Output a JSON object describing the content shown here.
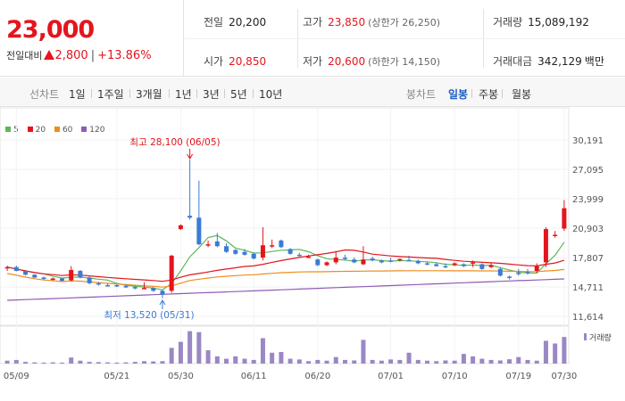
{
  "quote": {
    "price": "23,000",
    "change_label": "전일대비",
    "change": "2,800",
    "change_pct": "+13.86%"
  },
  "stats": {
    "prev_close_label": "전일",
    "prev_close": "20,200",
    "high_label": "고가",
    "high": "23,850",
    "upper_limit": "(상한가 26,250)",
    "volume_label": "거래량",
    "volume": "15,089,192",
    "open_label": "시가",
    "open": "20,850",
    "low_label": "저가",
    "low": "20,600",
    "lower_limit": "(하한가 14,150)",
    "value_label": "거래대금",
    "value": "342,129",
    "value_unit": "백만"
  },
  "tabs": {
    "line_label": "선차트",
    "line_items": [
      "1일",
      "1주일",
      "3개월",
      "1년",
      "3년",
      "5년",
      "10년"
    ],
    "candle_label": "봉차트",
    "candle_items": [
      "일봉",
      "주봉",
      "월봉"
    ],
    "candle_active": "일봉"
  },
  "colors": {
    "up": "#e4151d",
    "down": "#3a7bd5",
    "ma5": "#5cb85c",
    "ma20": "#e4151d",
    "ma60": "#f08c1e",
    "ma120": "#8e5bb5",
    "volume": "#9b87c4"
  },
  "chart_data": {
    "type": "candlestick",
    "legend": [
      "5",
      "20",
      "60",
      "120"
    ],
    "y_ticks": [
      "30,191",
      "27,095",
      "23,999",
      "20,903",
      "17,807",
      "14,711",
      "11,614"
    ],
    "ylim": [
      11614,
      30191
    ],
    "x_ticks": [
      "05/09",
      "05/21",
      "05/30",
      "06/11",
      "06/20",
      "07/01",
      "07/10",
      "07/19",
      "07/30"
    ],
    "high_annotation": "최고 28,100 (06/05)",
    "low_annotation": "최저 13,520 (05/31)",
    "volume_label": "거래량",
    "candles": [
      [
        16700,
        16950,
        16400,
        16800
      ],
      [
        16800,
        16950,
        16350,
        16400
      ],
      [
        16400,
        16500,
        15900,
        16000
      ],
      [
        16000,
        16050,
        15650,
        15700
      ],
      [
        15700,
        15800,
        15450,
        15550
      ],
      [
        15550,
        15700,
        15350,
        15600
      ],
      [
        15600,
        15700,
        15300,
        15350
      ],
      [
        15400,
        16900,
        15300,
        16500
      ],
      [
        16400,
        16500,
        15600,
        15700
      ],
      [
        15700,
        15800,
        15000,
        15100
      ],
      [
        15100,
        15250,
        14850,
        15000
      ],
      [
        14900,
        15050,
        14750,
        14850
      ],
      [
        14900,
        15000,
        14700,
        14800
      ],
      [
        14800,
        15000,
        14600,
        14700
      ],
      [
        14700,
        14850,
        14450,
        14550
      ],
      [
        14550,
        15200,
        14500,
        14600
      ],
      [
        14600,
        14700,
        14200,
        14300
      ],
      [
        14300,
        14400,
        13520,
        13900
      ],
      [
        14300,
        18100,
        14100,
        18000
      ],
      [
        20800,
        21300,
        20700,
        21200
      ],
      [
        22200,
        28100,
        21800,
        22000
      ],
      [
        22000,
        25900,
        19100,
        19200
      ],
      [
        19200,
        19600,
        18900,
        19200
      ],
      [
        19500,
        20400,
        18900,
        19000
      ],
      [
        19000,
        19300,
        18300,
        18400
      ],
      [
        18600,
        18700,
        18100,
        18200
      ],
      [
        18400,
        18700,
        18000,
        18100
      ],
      [
        18200,
        18300,
        17600,
        17700
      ],
      [
        17800,
        21000,
        17500,
        19100
      ],
      [
        19000,
        19700,
        18800,
        19100
      ],
      [
        19600,
        19700,
        18800,
        18900
      ],
      [
        18700,
        18800,
        18100,
        18200
      ],
      [
        18100,
        18300,
        17900,
        18000
      ],
      [
        17900,
        18100,
        17800,
        17900
      ],
      [
        17600,
        17700,
        16900,
        17000
      ],
      [
        17000,
        17400,
        16900,
        17300
      ],
      [
        17300,
        18500,
        17100,
        17800
      ],
      [
        17800,
        18100,
        17500,
        17700
      ],
      [
        17600,
        17800,
        17200,
        17300
      ],
      [
        17100,
        19000,
        17000,
        17600
      ],
      [
        17700,
        17900,
        17400,
        17500
      ],
      [
        17500,
        17600,
        17200,
        17300
      ],
      [
        17500,
        17800,
        17300,
        17400
      ],
      [
        17500,
        17700,
        17400,
        17650
      ],
      [
        17550,
        18000,
        17400,
        17450
      ],
      [
        17450,
        17600,
        17100,
        17200
      ],
      [
        17200,
        17400,
        17000,
        17100
      ],
      [
        17100,
        17300,
        16850,
        16900
      ],
      [
        16900,
        17200,
        16700,
        16800
      ],
      [
        17000,
        17300,
        16900,
        17200
      ],
      [
        17100,
        17200,
        16800,
        16900
      ],
      [
        17200,
        17500,
        16800,
        17300
      ],
      [
        17100,
        17200,
        16500,
        16600
      ],
      [
        16800,
        17200,
        16700,
        17000
      ],
      [
        16600,
        16800,
        15800,
        15900
      ],
      [
        15800,
        15900,
        15500,
        15700
      ],
      [
        16200,
        16600,
        15900,
        16100
      ],
      [
        16300,
        16600,
        16000,
        16200
      ],
      [
        16400,
        17200,
        16200,
        16900
      ],
      [
        17300,
        21000,
        16800,
        20800
      ],
      [
        20100,
        20600,
        19900,
        20200
      ],
      [
        20850,
        23850,
        20600,
        23000
      ]
    ],
    "volume": [
      1.2,
      1.5,
      0.7,
      0.5,
      0.4,
      0.5,
      0.4,
      2.5,
      1.2,
      0.7,
      0.6,
      0.5,
      0.4,
      0.5,
      0.7,
      1.0,
      0.9,
      1.0,
      6.5,
      9.0,
      13.4,
      13.0,
      5.5,
      3.0,
      2.0,
      3.0,
      2.0,
      1.5,
      10.5,
      4.5,
      4.8,
      2.0,
      1.7,
      1.0,
      1.5,
      1.2,
      2.7,
      1.5,
      1.3,
      9.8,
      1.5,
      1.2,
      1.7,
      1.5,
      4.5,
      1.5,
      1.2,
      1.0,
      1.3,
      1.2,
      4.0,
      3.0,
      2.0,
      1.5,
      1.3,
      1.8,
      2.7,
      1.5,
      1.2,
      9.4,
      8.3,
      11.0
    ],
    "vlim": [
      0,
      14
    ]
  }
}
